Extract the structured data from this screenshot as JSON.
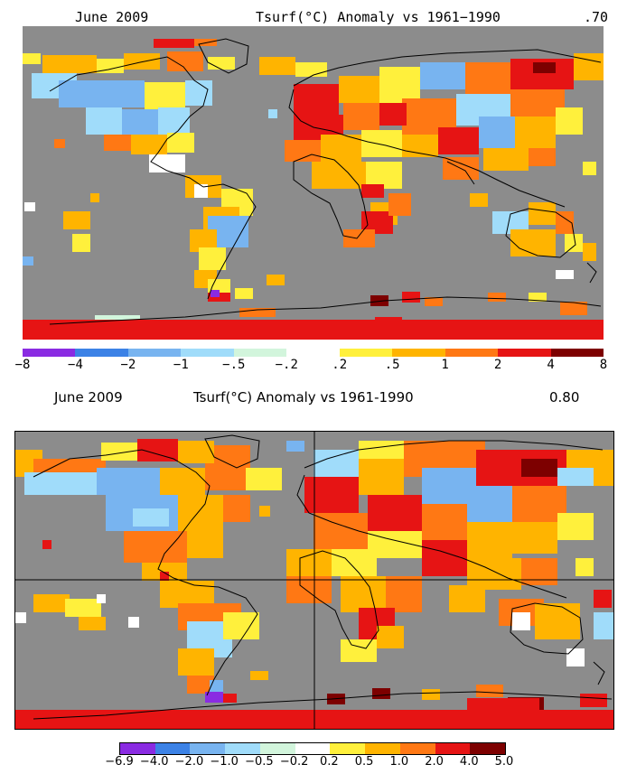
{
  "panel1": {
    "month": "June 2009",
    "title": "Tsurf(°C) Anomaly vs 1961−1990",
    "mean": ".70",
    "legend_colors": [
      "#8a2be2",
      "#3c82e6",
      "#78b4f0",
      "#a0dcfa",
      "#d2f5dc",
      "#ffffff",
      "#fff03c",
      "#ffb400",
      "#ff7814",
      "#e61414",
      "#7d0000"
    ],
    "legend_labels": [
      "−8",
      "−4",
      "−2",
      "−1",
      "−.5",
      "−.2",
      ".2",
      ".5",
      "1",
      "2",
      "4",
      "8"
    ]
  },
  "panel2": {
    "month": "June 2009",
    "title": "Tsurf(°C) Anomaly vs 1961-1990",
    "mean": "0.80",
    "legend_colors": [
      "#8a2be2",
      "#3c82e6",
      "#78b4f0",
      "#a0dcfa",
      "#d2f5dc",
      "#ffffff",
      "#fff03c",
      "#ffb400",
      "#ff7814",
      "#e61414",
      "#7d0000"
    ],
    "legend_labels": [
      "−6.9",
      "−4.0",
      "−2.0",
      "−1.0",
      "−0.5",
      "−0.2",
      "0.2",
      "0.5",
      "1.0",
      "2.0",
      "4.0",
      "5.0"
    ]
  }
}
